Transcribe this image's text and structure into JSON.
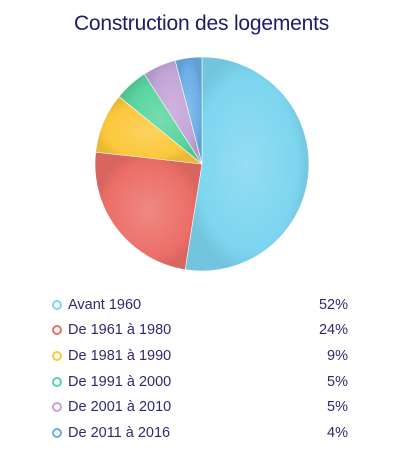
{
  "chart_data": {
    "type": "pie",
    "title": "Construction des logements",
    "categories": [
      "Avant 1960",
      "De 1961 à 1980",
      "De 1981 à 1990",
      "De 1991 à 2000",
      "De 2001 à 2010",
      "De 2011 à 2016"
    ],
    "values": [
      52,
      24,
      9,
      5,
      5,
      4
    ],
    "value_labels": [
      "52%",
      "24%",
      "9%",
      "5%",
      "5%",
      "4%"
    ],
    "colors": [
      "#7dd6f0",
      "#ec6e68",
      "#fcc83c",
      "#58d49e",
      "#c4a4d8",
      "#6aaee6"
    ],
    "legend_position": "bottom"
  }
}
